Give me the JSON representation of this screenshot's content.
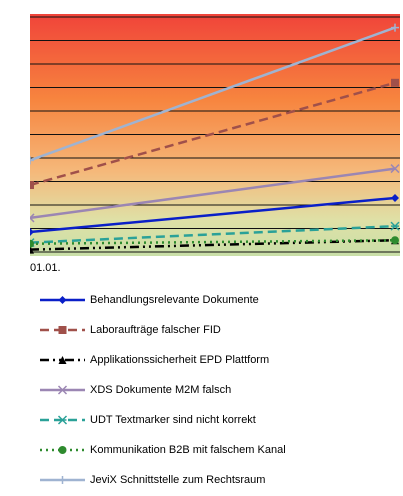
{
  "chart_data": {
    "type": "line",
    "categories": [
      "01.01.",
      null
    ],
    "ylim": [
      0,
      10
    ],
    "yticks": [
      0,
      1,
      2,
      3,
      4,
      5,
      6,
      7,
      8,
      9,
      10
    ],
    "grid": true,
    "series": [
      {
        "name": "Behandlungsrelevante Dokumente",
        "color": "#0a1fc8",
        "marker": "diamond",
        "dash": "solid",
        "values": [
          0.85,
          2.3
        ]
      },
      {
        "name": "Laboraufträge falscher FID",
        "color": "#a0504a",
        "marker": "square",
        "dash": "dashed",
        "values": [
          2.85,
          7.2
        ]
      },
      {
        "name": "Applikationssicherheit EPD Plattform",
        "color": "#000000",
        "marker": "triangle",
        "dash": "dashdot",
        "values": [
          0.1,
          0.5
        ]
      },
      {
        "name": "XDS Dokumente M2M falsch",
        "color": "#9b86b3",
        "marker": "x",
        "dash": "solid",
        "values": [
          1.45,
          3.55
        ]
      },
      {
        "name": "UDT Textmarker sind nicht korrekt",
        "color": "#2aa198",
        "marker": "asterisk",
        "dash": "dashed",
        "values": [
          0.4,
          1.1
        ]
      },
      {
        "name": "Kommunikation B2B mit falschem Kanal",
        "color": "#2e8b2e",
        "marker": "circle",
        "dash": "dotted",
        "values": [
          0.35,
          0.5
        ]
      },
      {
        "name": "JeviX Schnittstelle zum Rechtsraum",
        "color": "#9fb3d1",
        "marker": "plus",
        "dash": "solid",
        "values": [
          3.9,
          9.55
        ]
      }
    ]
  }
}
